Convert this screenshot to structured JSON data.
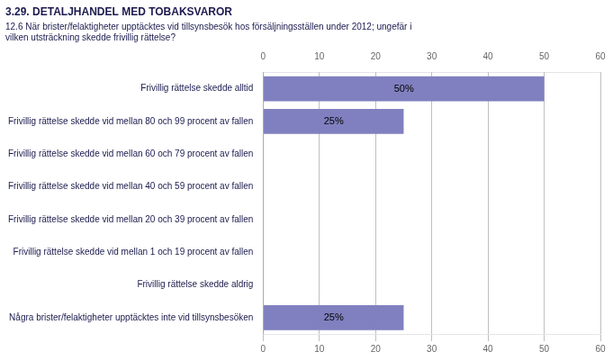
{
  "chart_data": {
    "type": "bar",
    "orientation": "horizontal",
    "title": "3.29. DETALJHANDEL MED TOBAKSVAROR",
    "subtitle": "12.6 När brister/felaktigheter upptäcktes vid tillsynsbesök hos försäljningsställen under 2012; ungefär i\nvilken utsträckning skedde frivillig rättelse?",
    "categories": [
      "Frivillig rättelse skedde alltid",
      "Frivillig rättelse skedde vid mellan 80 och 99 procent av fallen",
      "Frivillig rättelse skedde vid mellan 60 och 79 procent av fallen",
      "Frivillig rättelse skedde vid mellan 40 och 59 procent av fallen",
      "Frivillig rättelse skedde vid mellan 20 och 39 procent av fallen",
      "Frivillig rättelse skedde vid mellan 1 och 19 procent av fallen",
      "Frivillig rättelse skedde aldrig",
      "Några brister/felaktigheter upptäcktes inte vid tillsynsbesöken"
    ],
    "values": [
      50,
      25,
      0,
      0,
      0,
      0,
      0,
      25
    ],
    "value_labels": [
      "50%",
      "25%",
      null,
      null,
      null,
      null,
      null,
      "25%"
    ],
    "data_labels": true,
    "color": "#8080c0",
    "xlim": [
      0,
      60
    ],
    "xticks": [
      0,
      10,
      20,
      30,
      40,
      50,
      60
    ],
    "grid": true
  }
}
